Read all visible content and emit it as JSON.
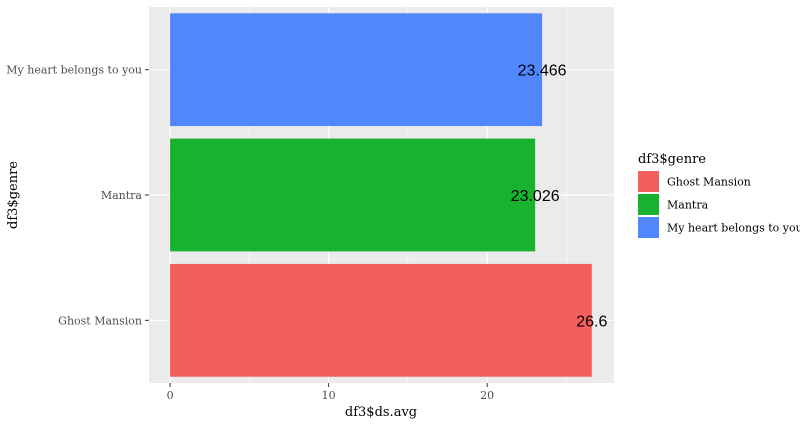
{
  "chart_data": {
    "type": "bar",
    "orientation": "horizontal",
    "categories": [
      "Ghost Mansion",
      "Mantra",
      "My heart belongs to you"
    ],
    "values": [
      26.6,
      23.026,
      23.466
    ],
    "data_labels": [
      "26.6",
      "23.026",
      "23.466"
    ],
    "colors": [
      "#F25F5C",
      "#19B22F",
      "#5087FF"
    ],
    "xlabel": "df3$ds.avg",
    "ylabel": "df3$genre",
    "xlim": [
      -1.33,
      28.0
    ],
    "x_ticks": [
      0,
      10,
      20
    ],
    "x_tick_labels": [
      "0",
      "10",
      "20"
    ],
    "grid": true,
    "legend": {
      "title": "df3$genre",
      "position": "right",
      "entries": [
        "Ghost Mansion",
        "Mantra",
        "My heart belongs to you"
      ]
    }
  }
}
